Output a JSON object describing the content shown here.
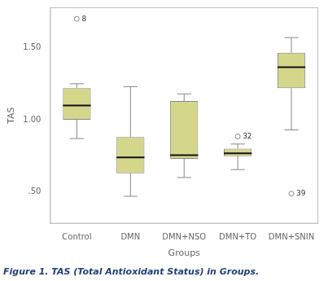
{
  "chart_data": {
    "type": "box",
    "caption": "Figure 1. TAS (Total Antioxidant Status) in Groups.",
    "xlabel": "Groups",
    "ylabel": "TAS",
    "categories": [
      "Control",
      "DMN",
      "DMN+NSO",
      "DMN+TO",
      "DMN+SNIN"
    ],
    "boxes": [
      {
        "q1": 1.0,
        "median": 1.1,
        "q3": 1.22,
        "whislo": 0.87,
        "whishi": 1.25,
        "fliers": [
          1.7
        ],
        "flier_labels": [
          "8"
        ]
      },
      {
        "q1": 0.63,
        "median": 0.74,
        "q3": 0.88,
        "whislo": 0.47,
        "whishi": 1.23,
        "fliers": [],
        "flier_labels": []
      },
      {
        "q1": 0.73,
        "median": 0.755,
        "q3": 1.13,
        "whislo": 0.6,
        "whishi": 1.18,
        "fliers": [],
        "flier_labels": []
      },
      {
        "q1": 0.748,
        "median": 0.768,
        "q3": 0.8,
        "whislo": 0.655,
        "whishi": 0.832,
        "fliers": [
          0.885
        ],
        "flier_labels": [
          "32"
        ]
      },
      {
        "q1": 1.22,
        "median": 1.365,
        "q3": 1.465,
        "whislo": 0.93,
        "whishi": 1.57,
        "fliers": [
          0.488
        ],
        "flier_labels": [
          "39"
        ]
      }
    ],
    "color": "#d4d68a",
    "ylim": [
      0.28,
      1.78
    ],
    "yticks": [
      {
        "value": 0.5,
        "label": ".50"
      },
      {
        "value": 1.0,
        "label": "1.00"
      },
      {
        "value": 1.5,
        "label": "1.50"
      }
    ],
    "grid": false
  }
}
